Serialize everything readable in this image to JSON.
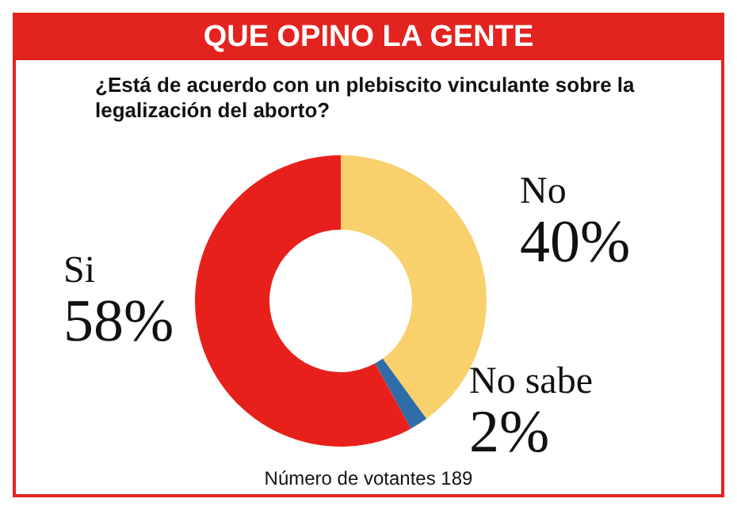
{
  "chart_data": {
    "type": "donut",
    "title": "QUE OPINO LA GENTE",
    "subtitle": "¿Está de acuerdo con un plebiscito vinculante sobre la legalización del aborto?",
    "categories": [
      "No",
      "No sabe",
      "Si"
    ],
    "values": [
      40,
      2,
      58
    ],
    "colors": [
      "#f8d06c",
      "#2f6da8",
      "#e8201c"
    ],
    "value_labels": [
      "40%",
      "2%",
      "58%"
    ],
    "annotations": [
      "Número de votantes 189"
    ]
  }
}
